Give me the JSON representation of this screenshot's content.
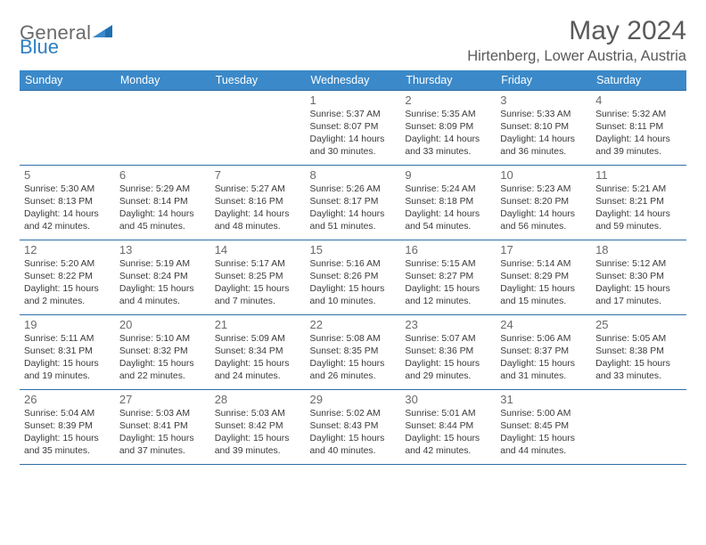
{
  "logo": {
    "text1": "General",
    "text2": "Blue"
  },
  "title": "May 2024",
  "location": "Hirtenberg, Lower Austria, Austria",
  "colors": {
    "header_bg": "#3b89c9",
    "header_text": "#ffffff",
    "border": "#2f6fa8",
    "title_text": "#5a5a5a",
    "logo_gray": "#6a6a6a",
    "logo_blue": "#2f7fc2",
    "body_text": "#3a3a3a",
    "daynum_text": "#6a6a6a"
  },
  "headers": [
    "Sunday",
    "Monday",
    "Tuesday",
    "Wednesday",
    "Thursday",
    "Friday",
    "Saturday"
  ],
  "weeks": [
    [
      null,
      null,
      null,
      {
        "d": "1",
        "sr": "5:37 AM",
        "ss": "8:07 PM",
        "dl": "14 hours and 30 minutes."
      },
      {
        "d": "2",
        "sr": "5:35 AM",
        "ss": "8:09 PM",
        "dl": "14 hours and 33 minutes."
      },
      {
        "d": "3",
        "sr": "5:33 AM",
        "ss": "8:10 PM",
        "dl": "14 hours and 36 minutes."
      },
      {
        "d": "4",
        "sr": "5:32 AM",
        "ss": "8:11 PM",
        "dl": "14 hours and 39 minutes."
      }
    ],
    [
      {
        "d": "5",
        "sr": "5:30 AM",
        "ss": "8:13 PM",
        "dl": "14 hours and 42 minutes."
      },
      {
        "d": "6",
        "sr": "5:29 AM",
        "ss": "8:14 PM",
        "dl": "14 hours and 45 minutes."
      },
      {
        "d": "7",
        "sr": "5:27 AM",
        "ss": "8:16 PM",
        "dl": "14 hours and 48 minutes."
      },
      {
        "d": "8",
        "sr": "5:26 AM",
        "ss": "8:17 PM",
        "dl": "14 hours and 51 minutes."
      },
      {
        "d": "9",
        "sr": "5:24 AM",
        "ss": "8:18 PM",
        "dl": "14 hours and 54 minutes."
      },
      {
        "d": "10",
        "sr": "5:23 AM",
        "ss": "8:20 PM",
        "dl": "14 hours and 56 minutes."
      },
      {
        "d": "11",
        "sr": "5:21 AM",
        "ss": "8:21 PM",
        "dl": "14 hours and 59 minutes."
      }
    ],
    [
      {
        "d": "12",
        "sr": "5:20 AM",
        "ss": "8:22 PM",
        "dl": "15 hours and 2 minutes."
      },
      {
        "d": "13",
        "sr": "5:19 AM",
        "ss": "8:24 PM",
        "dl": "15 hours and 4 minutes."
      },
      {
        "d": "14",
        "sr": "5:17 AM",
        "ss": "8:25 PM",
        "dl": "15 hours and 7 minutes."
      },
      {
        "d": "15",
        "sr": "5:16 AM",
        "ss": "8:26 PM",
        "dl": "15 hours and 10 minutes."
      },
      {
        "d": "16",
        "sr": "5:15 AM",
        "ss": "8:27 PM",
        "dl": "15 hours and 12 minutes."
      },
      {
        "d": "17",
        "sr": "5:14 AM",
        "ss": "8:29 PM",
        "dl": "15 hours and 15 minutes."
      },
      {
        "d": "18",
        "sr": "5:12 AM",
        "ss": "8:30 PM",
        "dl": "15 hours and 17 minutes."
      }
    ],
    [
      {
        "d": "19",
        "sr": "5:11 AM",
        "ss": "8:31 PM",
        "dl": "15 hours and 19 minutes."
      },
      {
        "d": "20",
        "sr": "5:10 AM",
        "ss": "8:32 PM",
        "dl": "15 hours and 22 minutes."
      },
      {
        "d": "21",
        "sr": "5:09 AM",
        "ss": "8:34 PM",
        "dl": "15 hours and 24 minutes."
      },
      {
        "d": "22",
        "sr": "5:08 AM",
        "ss": "8:35 PM",
        "dl": "15 hours and 26 minutes."
      },
      {
        "d": "23",
        "sr": "5:07 AM",
        "ss": "8:36 PM",
        "dl": "15 hours and 29 minutes."
      },
      {
        "d": "24",
        "sr": "5:06 AM",
        "ss": "8:37 PM",
        "dl": "15 hours and 31 minutes."
      },
      {
        "d": "25",
        "sr": "5:05 AM",
        "ss": "8:38 PM",
        "dl": "15 hours and 33 minutes."
      }
    ],
    [
      {
        "d": "26",
        "sr": "5:04 AM",
        "ss": "8:39 PM",
        "dl": "15 hours and 35 minutes."
      },
      {
        "d": "27",
        "sr": "5:03 AM",
        "ss": "8:41 PM",
        "dl": "15 hours and 37 minutes."
      },
      {
        "d": "28",
        "sr": "5:03 AM",
        "ss": "8:42 PM",
        "dl": "15 hours and 39 minutes."
      },
      {
        "d": "29",
        "sr": "5:02 AM",
        "ss": "8:43 PM",
        "dl": "15 hours and 40 minutes."
      },
      {
        "d": "30",
        "sr": "5:01 AM",
        "ss": "8:44 PM",
        "dl": "15 hours and 42 minutes."
      },
      {
        "d": "31",
        "sr": "5:00 AM",
        "ss": "8:45 PM",
        "dl": "15 hours and 44 minutes."
      },
      null
    ]
  ],
  "labels": {
    "sunrise": "Sunrise: ",
    "sunset": "Sunset: ",
    "daylight": "Daylight: "
  }
}
